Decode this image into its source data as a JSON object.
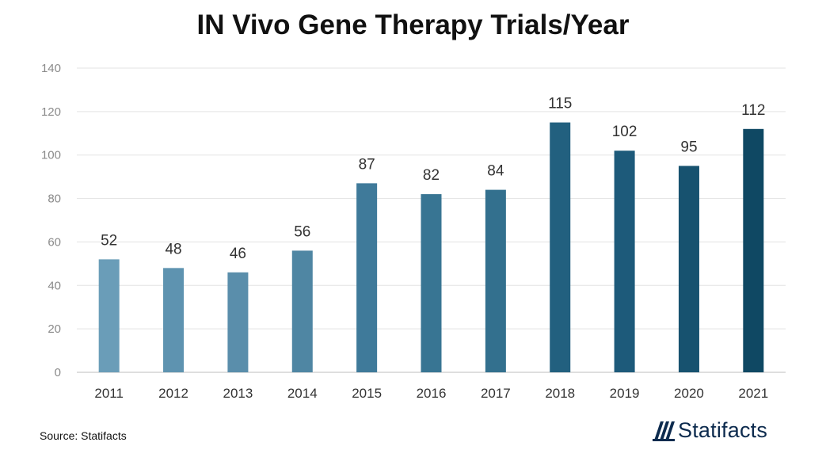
{
  "chart_data": {
    "type": "bar",
    "title": "IN Vivo Gene Therapy Trials/Year",
    "categories": [
      "2011",
      "2012",
      "2013",
      "2014",
      "2015",
      "2016",
      "2017",
      "2018",
      "2019",
      "2020",
      "2021"
    ],
    "values": [
      52,
      48,
      46,
      56,
      87,
      82,
      84,
      115,
      102,
      95,
      112
    ],
    "xlabel": "",
    "ylabel": "",
    "ylim": [
      0,
      140
    ],
    "yticks": [
      0,
      20,
      40,
      60,
      80,
      100,
      120,
      140
    ],
    "grid": true,
    "bar_colors": [
      "#6a9db8",
      "#5e93b0",
      "#5a8eab",
      "#4f86a3",
      "#3f7a9a",
      "#387593",
      "#33708e",
      "#22607f",
      "#1d5a7a",
      "#17526f",
      "#0f4863"
    ]
  },
  "footer": {
    "source": "Source: Statifacts",
    "brand": "Statifacts",
    "brand_color": "#0d2b4e"
  }
}
